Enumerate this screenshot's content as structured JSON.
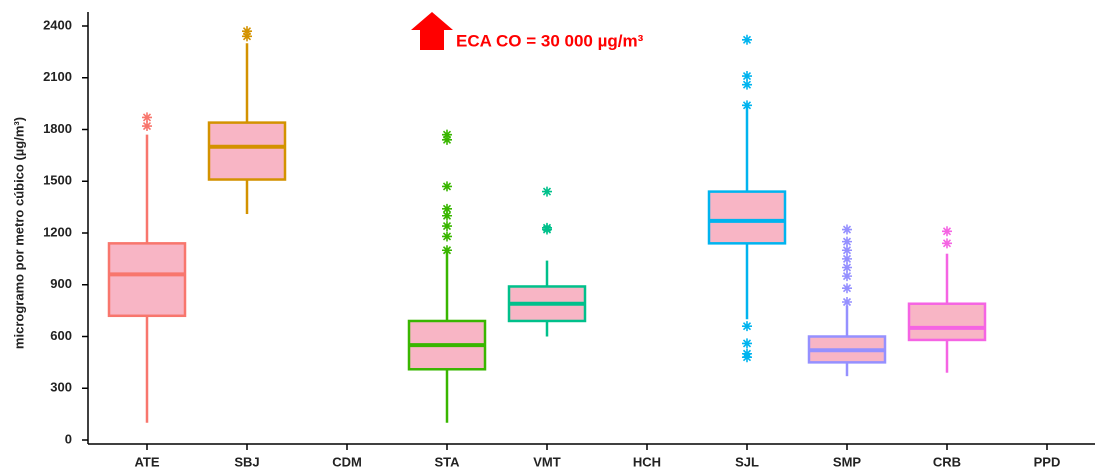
{
  "chart_data": {
    "type": "box",
    "y_label": "microgramo por metro cúbico (µg/m³)",
    "annotation": "ECA CO = 30 000 µg/m³",
    "annotation_color": "#ff0000",
    "box_fill": "#f7a8bb",
    "ylim": [
      0,
      2400
    ],
    "yticks": [
      0,
      300,
      600,
      900,
      1200,
      1500,
      1800,
      2100,
      2400
    ],
    "categories": [
      "ATE",
      "SBJ",
      "CDM",
      "STA",
      "VMT",
      "HCH",
      "SJL",
      "SMP",
      "CRB",
      "PPD"
    ],
    "boxes": [
      {
        "color": "#f8766d",
        "low": 100,
        "q1": 720,
        "median": 960,
        "q3": 1140,
        "high": 1770,
        "outliers": [
          1820,
          1870
        ]
      },
      {
        "color": "#d39200",
        "low": 1310,
        "q1": 1510,
        "median": 1700,
        "q3": 1840,
        "high": 2300,
        "outliers": [
          2340,
          2370
        ]
      },
      null,
      {
        "color": "#39b600",
        "low": 100,
        "q1": 410,
        "median": 550,
        "q3": 690,
        "high": 1090,
        "outliers": [
          1100,
          1180,
          1240,
          1300,
          1340,
          1470,
          1740,
          1770
        ]
      },
      {
        "color": "#00c08b",
        "low": 600,
        "q1": 690,
        "median": 790,
        "q3": 890,
        "high": 1040,
        "outliers": [
          1220,
          1230,
          1440
        ]
      },
      null,
      {
        "color": "#00b4ef",
        "low": 700,
        "q1": 1140,
        "median": 1270,
        "q3": 1440,
        "high": 1930,
        "outliers": [
          480,
          500,
          560,
          660,
          1940,
          2060,
          2110,
          2320
        ]
      },
      {
        "color": "#9590ff",
        "low": 370,
        "q1": 450,
        "median": 520,
        "q3": 600,
        "high": 780,
        "outliers": [
          800,
          880,
          950,
          1000,
          1050,
          1100,
          1150,
          1220
        ]
      },
      {
        "color": "#f564e3",
        "low": 390,
        "q1": 580,
        "median": 650,
        "q3": 790,
        "high": 1080,
        "outliers": [
          1140,
          1210
        ]
      },
      null
    ]
  }
}
